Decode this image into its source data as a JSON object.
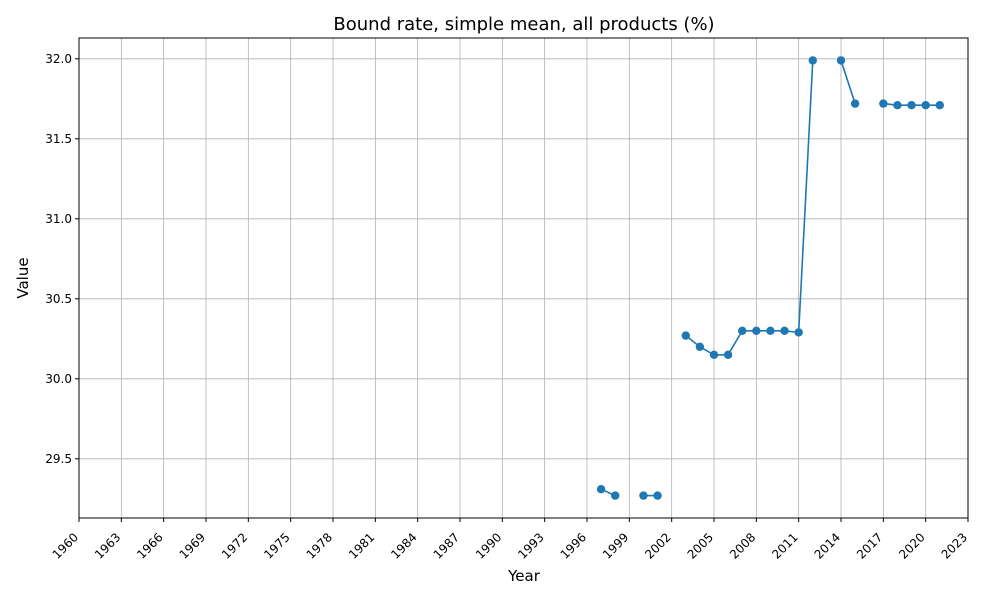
{
  "chart_data": {
    "type": "line",
    "title": "Bound rate, simple mean, all products (%)",
    "xlabel": "Year",
    "ylabel": "Value",
    "xlim": [
      1960,
      2023
    ],
    "ylim": [
      29.13,
      32.13
    ],
    "x_ticks": [
      1960,
      1963,
      1966,
      1969,
      1972,
      1975,
      1978,
      1981,
      1984,
      1987,
      1990,
      1993,
      1996,
      1999,
      2002,
      2005,
      2008,
      2011,
      2014,
      2017,
      2020,
      2023
    ],
    "y_ticks": [
      29.5,
      30.0,
      30.5,
      31.0,
      31.5,
      32.0
    ],
    "grid": true,
    "series": [
      {
        "color": "#1f77b4",
        "points": [
          {
            "x": 1997,
            "y": 29.31
          },
          {
            "x": 1998,
            "y": 29.27
          },
          {
            "x": 1999,
            "y": null
          },
          {
            "x": 2000,
            "y": 29.27
          },
          {
            "x": 2001,
            "y": 29.27
          },
          {
            "x": 2002,
            "y": null
          },
          {
            "x": 2003,
            "y": 30.27
          },
          {
            "x": 2004,
            "y": 30.2
          },
          {
            "x": 2005,
            "y": 30.15
          },
          {
            "x": 2006,
            "y": 30.15
          },
          {
            "x": 2007,
            "y": 30.3
          },
          {
            "x": 2008,
            "y": 30.3
          },
          {
            "x": 2009,
            "y": 30.3
          },
          {
            "x": 2010,
            "y": 30.3
          },
          {
            "x": 2011,
            "y": 30.29
          },
          {
            "x": 2012,
            "y": 31.99
          },
          {
            "x": 2013,
            "y": null
          },
          {
            "x": 2014,
            "y": 31.99
          },
          {
            "x": 2015,
            "y": 31.72
          },
          {
            "x": 2016,
            "y": null
          },
          {
            "x": 2017,
            "y": 31.72
          },
          {
            "x": 2018,
            "y": 31.71
          },
          {
            "x": 2019,
            "y": 31.71
          },
          {
            "x": 2020,
            "y": 31.71
          },
          {
            "x": 2021,
            "y": 31.71
          }
        ]
      }
    ]
  }
}
